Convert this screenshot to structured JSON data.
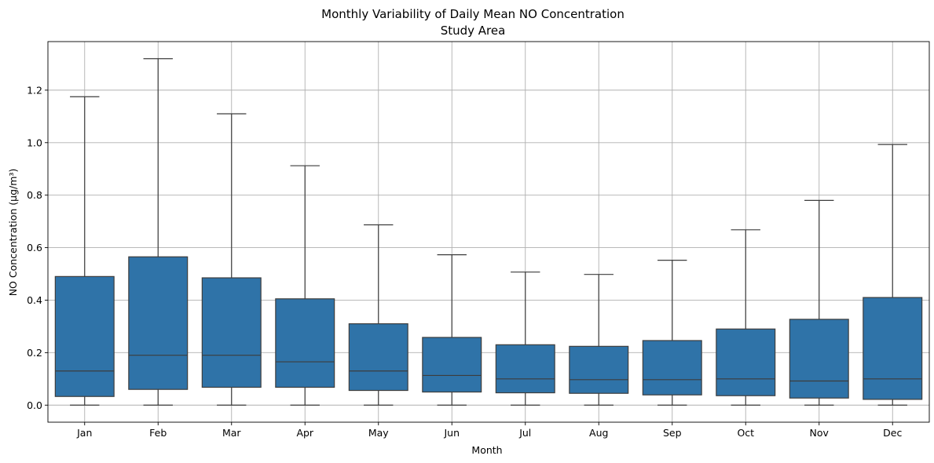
{
  "chart_data": {
    "type": "box",
    "title": "Monthly Variability of Daily Mean NO Concentration",
    "subtitle": "Study Area",
    "xlabel": "Month",
    "ylabel": "NO Concentration (µg/m³)",
    "ylim": [
      -0.065,
      1.385
    ],
    "yticks": [
      0.0,
      0.2,
      0.4,
      0.6,
      0.8,
      1.0,
      1.2
    ],
    "ytick_labels": [
      "0.0",
      "0.2",
      "0.4",
      "0.6",
      "0.8",
      "1.0",
      "1.2"
    ],
    "grid": true,
    "color": "#2f73a8",
    "categories": [
      "Jan",
      "Feb",
      "Mar",
      "Apr",
      "May",
      "Jun",
      "Jul",
      "Aug",
      "Sep",
      "Oct",
      "Nov",
      "Dec"
    ],
    "boxes": [
      {
        "min": 0.0,
        "q1": 0.033,
        "median": 0.13,
        "q3": 0.49,
        "max": 1.175
      },
      {
        "min": 0.0,
        "q1": 0.06,
        "median": 0.19,
        "q3": 0.565,
        "max": 1.32
      },
      {
        "min": 0.0,
        "q1": 0.068,
        "median": 0.19,
        "q3": 0.485,
        "max": 1.11
      },
      {
        "min": 0.0,
        "q1": 0.068,
        "median": 0.165,
        "q3": 0.405,
        "max": 0.912
      },
      {
        "min": 0.0,
        "q1": 0.056,
        "median": 0.13,
        "q3": 0.31,
        "max": 0.687
      },
      {
        "min": 0.0,
        "q1": 0.05,
        "median": 0.113,
        "q3": 0.258,
        "max": 0.573
      },
      {
        "min": 0.0,
        "q1": 0.047,
        "median": 0.1,
        "q3": 0.23,
        "max": 0.507
      },
      {
        "min": 0.0,
        "q1": 0.045,
        "median": 0.097,
        "q3": 0.224,
        "max": 0.498
      },
      {
        "min": 0.0,
        "q1": 0.039,
        "median": 0.097,
        "q3": 0.246,
        "max": 0.552
      },
      {
        "min": 0.0,
        "q1": 0.036,
        "median": 0.1,
        "q3": 0.29,
        "max": 0.668
      },
      {
        "min": 0.0,
        "q1": 0.027,
        "median": 0.092,
        "q3": 0.327,
        "max": 0.78
      },
      {
        "min": 0.0,
        "q1": 0.022,
        "median": 0.1,
        "q3": 0.41,
        "max": 0.993
      }
    ]
  }
}
